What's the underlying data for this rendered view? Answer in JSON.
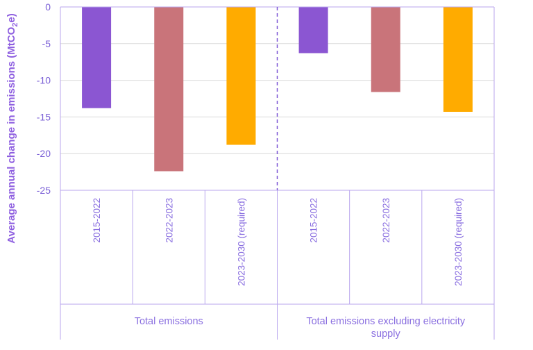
{
  "chart_data": {
    "type": "bar",
    "title": "",
    "ylabel": "Average annual change in emissions (MtCO2e)",
    "ylabel_main": "Average annual change in emissions (MtCO",
    "ylabel_sub": "2",
    "ylabel_tail": "e)",
    "ylim": [
      -25,
      0
    ],
    "yticks": [
      0,
      -5,
      -10,
      -15,
      -20,
      -25
    ],
    "grid": true,
    "legend": "none",
    "groups": [
      {
        "label": "Total emissions",
        "label_lines": [
          "Total emissions"
        ],
        "bars": [
          {
            "category": "2015-2022",
            "value": -13.8,
            "color": "#8b56d2"
          },
          {
            "category": "2022-2023",
            "value": -22.4,
            "color": "#c9747a"
          },
          {
            "category": "2023-2030 (required)",
            "value": -18.8,
            "color": "#ffab00"
          }
        ]
      },
      {
        "label": "Total emissions excluding electricity supply",
        "label_lines": [
          "Total emissions excluding electricity",
          "supply"
        ],
        "bars": [
          {
            "category": "2015-2022",
            "value": -6.3,
            "color": "#8b56d2"
          },
          {
            "category": "2022-2023",
            "value": -11.6,
            "color": "#c9747a"
          },
          {
            "category": "2023-2030 (required)",
            "value": -14.3,
            "color": "#ffab00"
          }
        ]
      }
    ]
  }
}
